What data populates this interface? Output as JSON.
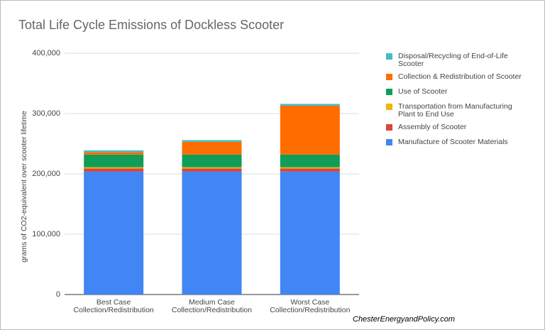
{
  "chart_data": {
    "type": "stacked-bar",
    "title": "Total Life Cycle Emissions of Dockless Scooter",
    "y_label": "grams of CO2-equivalent over scooter lifetime",
    "source": "ChesterEnergyandPolicy.com",
    "categories": [
      "Best Case Collection/Redistribution",
      "Medium Case Collection/Redistribution",
      "Worst Case Collection/Redistribution"
    ],
    "series": [
      {
        "name": "Manufacture of Scooter Materials",
        "color": "#4285f4",
        "values": [
          204000,
          204000,
          204000
        ]
      },
      {
        "name": "Assembly of Scooter",
        "color": "#db4437",
        "values": [
          5000,
          5000,
          5000
        ]
      },
      {
        "name": "Transportation from Manufacturing Plant to End Use",
        "color": "#f4b400",
        "values": [
          2000,
          2000,
          2000
        ]
      },
      {
        "name": "Use of Scooter",
        "color": "#0f9d58",
        "values": [
          21000,
          21000,
          21000
        ]
      },
      {
        "name": "Collection & Redistribution of Scooter",
        "color": "#ff6d01",
        "values": [
          4000,
          21000,
          81000
        ]
      },
      {
        "name": "Disposal/Recycling of End-of-Life Scooter",
        "color": "#46bdc6",
        "values": [
          3000,
          3000,
          3000
        ]
      }
    ],
    "ylim": [
      0,
      400000
    ],
    "yticks": [
      0,
      {
        "value": 100000,
        "label": "100,000"
      },
      {
        "value": 200000,
        "label": "200,000"
      },
      {
        "value": 300000,
        "label": "300,000"
      },
      {
        "value": 400000,
        "label": "400,000"
      }
    ],
    "grid": true
  }
}
